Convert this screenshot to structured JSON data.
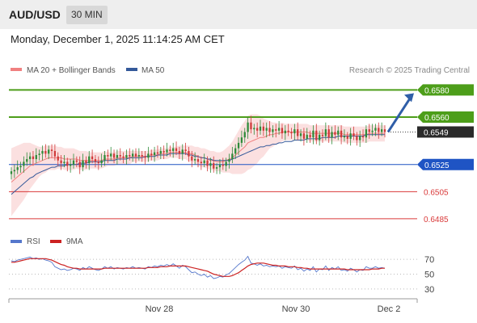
{
  "header": {
    "symbol": "AUD/USD",
    "timeframe": "30 MIN",
    "datetime": "Monday, December 1, 2025 11:14:25 AM CET"
  },
  "legend": {
    "bollinger_label": "MA 20 + Bollinger Bands",
    "bollinger_color": "#f08080",
    "ma50_label": "MA 50",
    "ma50_color": "#34599a",
    "credit": "Research © 2025 Trading Central"
  },
  "chart_data": [
    {
      "type": "candlestick",
      "title": "AUD/USD",
      "ylim": [
        0.6476,
        0.6588
      ],
      "x_ticks": [
        "Nov 28",
        "Nov 30",
        "Dec 2"
      ],
      "current_price": 0.6549,
      "levels": [
        {
          "value": 0.658,
          "label": "0.6580",
          "kind": "resistance",
          "color": "#4d9e1a"
        },
        {
          "value": 0.656,
          "label": "0.6560",
          "kind": "resistance",
          "color": "#4d9e1a"
        },
        {
          "value": 0.6549,
          "label": "0.6549",
          "kind": "last",
          "color": "#2a2a2a"
        },
        {
          "value": 0.6525,
          "label": "0.6525",
          "kind": "pivot",
          "color": "#1f54c4"
        },
        {
          "value": 0.6505,
          "label": "0.6505",
          "kind": "support",
          "color": "#d93a3a"
        },
        {
          "value": 0.6485,
          "label": "0.6485",
          "kind": "support",
          "color": "#d93a3a"
        }
      ],
      "forecast_arrow": {
        "from": 0.6549,
        "to": 0.658,
        "color": "#2f5ea8"
      },
      "candles_close": [
        0.652,
        0.6521,
        0.6523,
        0.6524,
        0.6527,
        0.6529,
        0.6531,
        0.6529,
        0.6532,
        0.6533,
        0.6535,
        0.6533,
        0.6536,
        0.6535,
        0.6531,
        0.6528,
        0.6526,
        0.6527,
        0.6524,
        0.6525,
        0.6528,
        0.6527,
        0.6523,
        0.6528,
        0.6526,
        0.6531,
        0.6529,
        0.6527,
        0.6526,
        0.6528,
        0.6532,
        0.6531,
        0.6533,
        0.653,
        0.6532,
        0.6531,
        0.653,
        0.6532,
        0.6531,
        0.6533,
        0.6531,
        0.6532,
        0.6531,
        0.653,
        0.6533,
        0.6532,
        0.6534,
        0.6533,
        0.6535,
        0.6534,
        0.6536,
        0.6535,
        0.6537,
        0.6535,
        0.6533,
        0.6536,
        0.6535,
        0.6531,
        0.6528,
        0.6529,
        0.6527,
        0.6526,
        0.6528,
        0.6524,
        0.6526,
        0.6522,
        0.6523,
        0.6525,
        0.6524,
        0.6527,
        0.6529,
        0.6533,
        0.6537,
        0.6541,
        0.6545,
        0.6549,
        0.6556,
        0.6551,
        0.6552,
        0.655,
        0.6553,
        0.655,
        0.6552,
        0.6549,
        0.6551,
        0.655,
        0.6552,
        0.6548,
        0.655,
        0.6549,
        0.6548,
        0.6551,
        0.6546,
        0.6548,
        0.6544,
        0.6547,
        0.6545,
        0.655,
        0.6543,
        0.6547,
        0.6546,
        0.6551,
        0.6545,
        0.6549,
        0.6547,
        0.655,
        0.6545,
        0.6546,
        0.6544,
        0.6548,
        0.6546,
        0.6543,
        0.6546,
        0.6545,
        0.6551,
        0.6549,
        0.655,
        0.6552,
        0.6549,
        0.6551,
        0.6549
      ],
      "ma50": [
        0.6503,
        0.6505,
        0.6507,
        0.6509,
        0.6511,
        0.6513,
        0.6515,
        0.6516,
        0.6518,
        0.6519,
        0.652,
        0.6521,
        0.6522,
        0.6523,
        0.6523,
        0.6524,
        0.6524,
        0.6524,
        0.6525,
        0.6525,
        0.6525,
        0.6525,
        0.6526,
        0.6526,
        0.6526,
        0.6527,
        0.6527,
        0.6527,
        0.6527,
        0.6527,
        0.6528,
        0.6528,
        0.6528,
        0.6528,
        0.6529,
        0.6529,
        0.6529,
        0.6529,
        0.653,
        0.653,
        0.653,
        0.653,
        0.653,
        0.6531,
        0.6531,
        0.6531,
        0.6531,
        0.6532,
        0.6532,
        0.6532,
        0.6532,
        0.6533,
        0.6533,
        0.6533,
        0.6533,
        0.6533,
        0.6533,
        0.6532,
        0.6532,
        0.6531,
        0.6531,
        0.653,
        0.653,
        0.6529,
        0.6529,
        0.6528,
        0.6528,
        0.6528,
        0.6528,
        0.6528,
        0.6528,
        0.6529,
        0.653,
        0.6531,
        0.6532,
        0.6533,
        0.6534,
        0.6535,
        0.6536,
        0.6537,
        0.6538,
        0.6538,
        0.6539,
        0.6539,
        0.654,
        0.654,
        0.6541,
        0.6541,
        0.6542,
        0.6542,
        0.6542,
        0.6543,
        0.6543,
        0.6543,
        0.6543,
        0.6544,
        0.6544,
        0.6544,
        0.6544,
        0.6544,
        0.6545,
        0.6545,
        0.6545,
        0.6545,
        0.6545,
        0.6546,
        0.6546,
        0.6546,
        0.6546,
        0.6546,
        0.6546,
        0.6546,
        0.6546,
        0.6546,
        0.6547,
        0.6547,
        0.6547,
        0.6547,
        0.6547,
        0.6547,
        0.6547
      ],
      "ma20": [
        0.6512,
        0.6514,
        0.6516,
        0.6518,
        0.652,
        0.6522,
        0.6524,
        0.6525,
        0.6526,
        0.6527,
        0.6528,
        0.6529,
        0.653,
        0.653,
        0.653,
        0.653,
        0.653,
        0.6529,
        0.6529,
        0.6529,
        0.6529,
        0.6529,
        0.6528,
        0.6528,
        0.6528,
        0.6528,
        0.6528,
        0.6528,
        0.6528,
        0.6528,
        0.6529,
        0.6529,
        0.6529,
        0.6529,
        0.653,
        0.653,
        0.653,
        0.653,
        0.653,
        0.6531,
        0.6531,
        0.6531,
        0.6531,
        0.6531,
        0.6531,
        0.6532,
        0.6532,
        0.6532,
        0.6533,
        0.6533,
        0.6533,
        0.6534,
        0.6534,
        0.6534,
        0.6534,
        0.6534,
        0.6534,
        0.6533,
        0.6533,
        0.6532,
        0.6531,
        0.653,
        0.653,
        0.6529,
        0.6528,
        0.6528,
        0.6527,
        0.6527,
        0.6527,
        0.6528,
        0.6529,
        0.653,
        0.6532,
        0.6534,
        0.6536,
        0.6538,
        0.6541,
        0.6542,
        0.6543,
        0.6544,
        0.6545,
        0.6545,
        0.6546,
        0.6547,
        0.6547,
        0.6548,
        0.6548,
        0.6549,
        0.6549,
        0.6549,
        0.6549,
        0.6549,
        0.6549,
        0.6549,
        0.6549,
        0.6549,
        0.6548,
        0.6548,
        0.6548,
        0.6548,
        0.6548,
        0.6548,
        0.6548,
        0.6548,
        0.6548,
        0.6548,
        0.6548,
        0.6547,
        0.6547,
        0.6547,
        0.6547,
        0.6547,
        0.6547,
        0.6547,
        0.6547,
        0.6548,
        0.6548,
        0.6548,
        0.6548,
        0.6548,
        0.6548
      ],
      "band_halfwidth": [
        0.0025,
        0.0024,
        0.0023,
        0.0022,
        0.0021,
        0.0019,
        0.0017,
        0.0015,
        0.0013,
        0.0011,
        0.001,
        0.001,
        0.0009,
        0.0009,
        0.0009,
        0.0008,
        0.0008,
        0.0008,
        0.0008,
        0.0008,
        0.0008,
        0.0007,
        0.0007,
        0.0007,
        0.0007,
        0.0006,
        0.0006,
        0.0006,
        0.0006,
        0.0006,
        0.0006,
        0.0005,
        0.0005,
        0.0005,
        0.0005,
        0.0005,
        0.0005,
        0.0005,
        0.0005,
        0.0004,
        0.0004,
        0.0004,
        0.0004,
        0.0004,
        0.0004,
        0.0004,
        0.0004,
        0.0004,
        0.0004,
        0.0004,
        0.0004,
        0.0004,
        0.0004,
        0.0004,
        0.0005,
        0.0005,
        0.0005,
        0.0006,
        0.0006,
        0.0006,
        0.0007,
        0.0007,
        0.0007,
        0.0007,
        0.0007,
        0.0007,
        0.0007,
        0.0007,
        0.0008,
        0.0009,
        0.001,
        0.0012,
        0.0014,
        0.0016,
        0.0018,
        0.0019,
        0.002,
        0.002,
        0.0019,
        0.0018,
        0.0016,
        0.0014,
        0.0012,
        0.001,
        0.0009,
        0.0008,
        0.0007,
        0.0007,
        0.0006,
        0.0006,
        0.0006,
        0.0006,
        0.0006,
        0.0006,
        0.0006,
        0.0006,
        0.0006,
        0.0006,
        0.0006,
        0.0006,
        0.0006,
        0.0006,
        0.0006,
        0.0006,
        0.0006,
        0.0006,
        0.0006,
        0.0006,
        0.0006,
        0.0006,
        0.0006,
        0.0006,
        0.0006,
        0.0006,
        0.0006,
        0.0006,
        0.0006,
        0.0006,
        0.0006,
        0.0006,
        0.0006
      ]
    },
    {
      "type": "line",
      "title": "RSI",
      "ylim": [
        20,
        80
      ],
      "y_ticks": [
        70,
        50,
        30
      ],
      "series": [
        {
          "name": "RSI",
          "color": "#5577cc",
          "values": [
            68,
            67,
            69,
            70,
            71,
            72,
            73,
            71,
            72,
            70,
            71,
            69,
            68,
            66,
            60,
            58,
            56,
            57,
            55,
            56,
            58,
            57,
            55,
            59,
            57,
            60,
            58,
            56,
            55,
            57,
            60,
            58,
            60,
            57,
            59,
            58,
            57,
            59,
            58,
            60,
            58,
            59,
            58,
            57,
            60,
            59,
            61,
            60,
            62,
            61,
            63,
            61,
            64,
            61,
            58,
            62,
            60,
            56,
            52,
            53,
            50,
            48,
            50,
            46,
            48,
            44,
            45,
            47,
            46,
            49,
            51,
            55,
            59,
            63,
            66,
            69,
            74,
            65,
            64,
            62,
            64,
            61,
            62,
            60,
            61,
            60,
            61,
            58,
            60,
            59,
            58,
            61,
            56,
            58,
            54,
            57,
            55,
            60,
            53,
            57,
            56,
            61,
            55,
            59,
            57,
            60,
            55,
            56,
            54,
            58,
            56,
            53,
            56,
            55,
            60,
            58,
            58,
            60,
            58,
            59,
            58
          ]
        },
        {
          "name": "9MA",
          "color": "#cc2222",
          "values": [
            66,
            66,
            67,
            68,
            69,
            70,
            71,
            71,
            71,
            71,
            71,
            71,
            70,
            69,
            67,
            65,
            63,
            62,
            60,
            59,
            58,
            58,
            57,
            57,
            57,
            57,
            57,
            57,
            57,
            57,
            58,
            58,
            58,
            58,
            58,
            58,
            58,
            58,
            58,
            58,
            58,
            58,
            58,
            58,
            59,
            59,
            59,
            59,
            60,
            60,
            60,
            61,
            61,
            61,
            61,
            61,
            61,
            60,
            59,
            58,
            57,
            56,
            55,
            54,
            52,
            50,
            49,
            48,
            47,
            47,
            47,
            48,
            50,
            52,
            55,
            58,
            61,
            63,
            64,
            65,
            65,
            65,
            64,
            63,
            62,
            62,
            61,
            61,
            61,
            60,
            60,
            60,
            59,
            59,
            58,
            58,
            57,
            57,
            57,
            57,
            57,
            57,
            57,
            57,
            57,
            57,
            57,
            57,
            56,
            56,
            56,
            56,
            56,
            56,
            56,
            56,
            57,
            57,
            57,
            58,
            58
          ]
        }
      ]
    }
  ]
}
